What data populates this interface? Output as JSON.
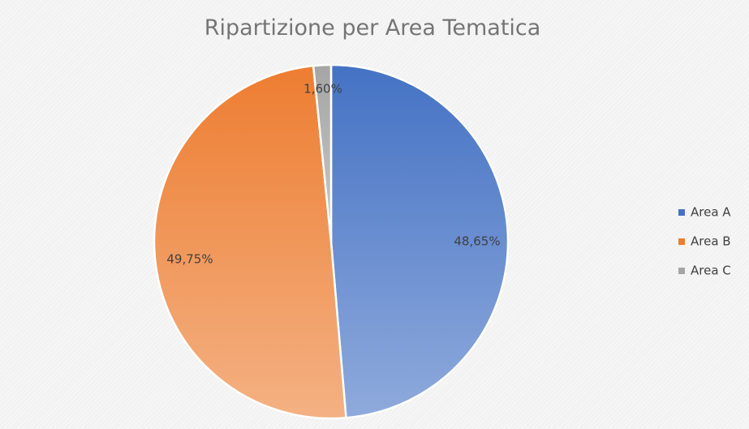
{
  "chart_data": {
    "type": "pie",
    "title": "Ripartizione per Area Tematica",
    "categories": [
      "Area A",
      "Area B",
      "Area C"
    ],
    "values": [
      48.65,
      49.75,
      1.6
    ],
    "data_labels": [
      "48,65%",
      "49,75%",
      "1,60%"
    ],
    "colors": [
      "#4472c4",
      "#ed7d31",
      "#a5a5a5"
    ],
    "legend_position": "right",
    "start_angle": "12 o'clock, clockwise"
  }
}
